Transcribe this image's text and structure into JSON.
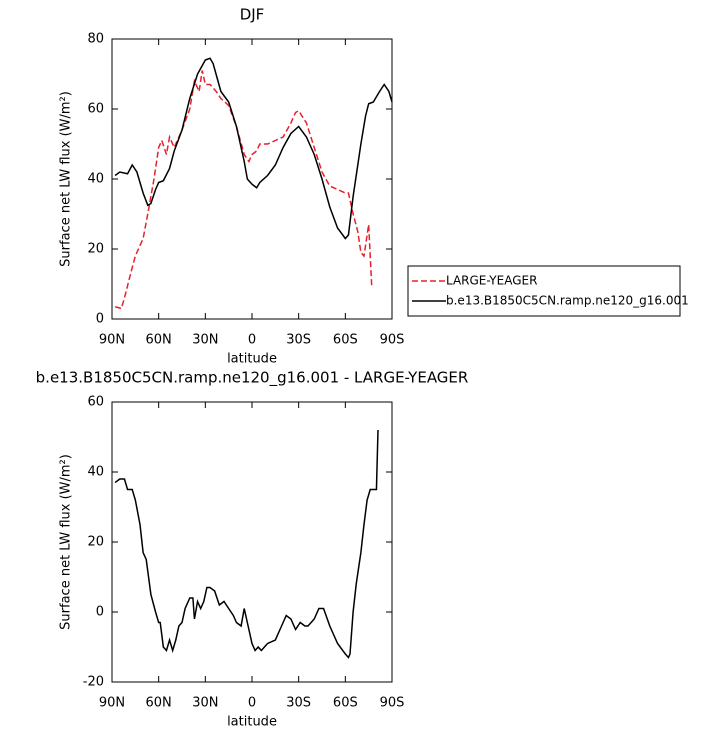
{
  "chart_data": [
    {
      "type": "line",
      "title": "DJF",
      "xlabel": "latitude",
      "ylabel": "Surface net LW flux (W/m²)",
      "xlim": [
        90,
        -90
      ],
      "xticks": [
        {
          "value": 90,
          "label": "90N"
        },
        {
          "value": 60,
          "label": "60N"
        },
        {
          "value": 30,
          "label": "30N"
        },
        0,
        {
          "value": -30,
          "label": "30S"
        },
        {
          "value": -60,
          "label": "60S"
        },
        {
          "value": -90,
          "label": "90S"
        }
      ],
      "ylim": [
        0,
        80
      ],
      "yticks": [
        0,
        20,
        40,
        60,
        80
      ],
      "legend": "right",
      "series": [
        {
          "name": "LARGE-YEAGER",
          "color": "#e8202a",
          "dash": true,
          "x": [
            88,
            84,
            82,
            78,
            75,
            70,
            67,
            63,
            60,
            58,
            55,
            53,
            50,
            47,
            45,
            40,
            37,
            34,
            32,
            30,
            27,
            23,
            20,
            15,
            10,
            5,
            2,
            0,
            -3,
            -5,
            -10,
            -15,
            -20,
            -25,
            -28,
            -30,
            -35,
            -40,
            -45,
            -50,
            -55,
            -60,
            -62,
            -65,
            -68,
            -70,
            -72,
            -75,
            -77
          ],
          "values": [
            3.5,
            3,
            6,
            13,
            18,
            23,
            30,
            40,
            49,
            51,
            47,
            52,
            49,
            52,
            54,
            60,
            68,
            65,
            71,
            67,
            67,
            65,
            63,
            61,
            55,
            47,
            45,
            47,
            48,
            50,
            50,
            51,
            52,
            56,
            59,
            59.5,
            56,
            49,
            42,
            38,
            37,
            36,
            36,
            30,
            25,
            19,
            18,
            27,
            9
          ]
        },
        {
          "name": "b.e13.B1850C5CN.ramp.ne120_g16.001",
          "color": "#000000",
          "dash": false,
          "x": [
            88,
            85,
            80,
            77,
            74,
            70,
            67,
            65,
            62,
            60,
            57,
            53,
            50,
            45,
            40,
            35,
            30,
            27,
            25,
            20,
            15,
            10,
            5,
            3,
            0,
            -3,
            -5,
            -10,
            -15,
            -20,
            -25,
            -30,
            -35,
            -40,
            -45,
            -50,
            -55,
            -60,
            -62,
            -65,
            -70,
            -73,
            -75,
            -78,
            -82,
            -85,
            -88,
            -90
          ],
          "values": [
            41,
            42,
            41.5,
            44,
            42,
            36,
            32.5,
            33,
            37,
            39,
            39.5,
            43,
            48,
            54,
            63,
            70,
            74,
            74.5,
            73,
            65,
            62,
            55,
            45,
            40,
            38.5,
            37.5,
            39,
            41,
            44,
            49,
            53,
            55,
            52,
            47,
            40,
            32,
            26,
            23,
            24,
            35,
            50,
            58,
            61.5,
            62,
            65,
            67,
            65,
            62
          ]
        }
      ]
    },
    {
      "type": "line",
      "title": "b.e13.B1850C5CN.ramp.ne120_g16.001 - LARGE-YEAGER",
      "xlabel": "latitude",
      "ylabel": "Surface net LW flux (W/m²)",
      "xlim": [
        90,
        -90
      ],
      "xticks": [
        {
          "value": 90,
          "label": "90N"
        },
        {
          "value": 60,
          "label": "60N"
        },
        {
          "value": 30,
          "label": "30N"
        },
        0,
        {
          "value": -30,
          "label": "30S"
        },
        {
          "value": -60,
          "label": "60S"
        },
        {
          "value": -90,
          "label": "90S"
        }
      ],
      "ylim": [
        -20,
        60
      ],
      "yticks": [
        -20,
        0,
        20,
        40,
        60
      ],
      "series": [
        {
          "color": "#000000",
          "dash": false,
          "x": [
            88,
            85,
            82,
            80,
            77,
            75,
            72,
            70,
            68,
            65,
            62,
            60,
            59,
            57,
            55,
            53,
            51,
            49,
            47,
            45,
            43,
            40,
            38,
            37,
            35,
            33,
            31,
            29,
            27,
            24,
            21,
            18,
            15,
            12,
            10,
            7,
            5,
            3,
            0,
            -2,
            -4,
            -6,
            -10,
            -15,
            -18,
            -22,
            -25,
            -28,
            -31,
            -34,
            -36,
            -40,
            -43,
            -46,
            -50,
            -55,
            -60,
            -62,
            -63,
            -65,
            -67,
            -70,
            -72,
            -74,
            -76,
            -78,
            -80,
            -81
          ],
          "values": [
            37,
            38,
            38,
            35,
            35,
            32,
            25,
            17,
            15,
            5,
            0,
            -3,
            -3,
            -10,
            -11,
            -8,
            -11,
            -8,
            -4,
            -3,
            1,
            4,
            4,
            -2,
            3,
            1,
            3,
            7,
            7,
            6,
            2,
            3,
            1,
            -1,
            -3,
            -4,
            1,
            -3,
            -9,
            -11,
            -10,
            -11,
            -9,
            -8,
            -5,
            -1,
            -2,
            -5,
            -3,
            -4,
            -4,
            -2,
            1,
            1,
            -4,
            -9,
            -12,
            -13,
            -12,
            0,
            8,
            17,
            25,
            32,
            35,
            35,
            35,
            52
          ]
        }
      ]
    }
  ]
}
